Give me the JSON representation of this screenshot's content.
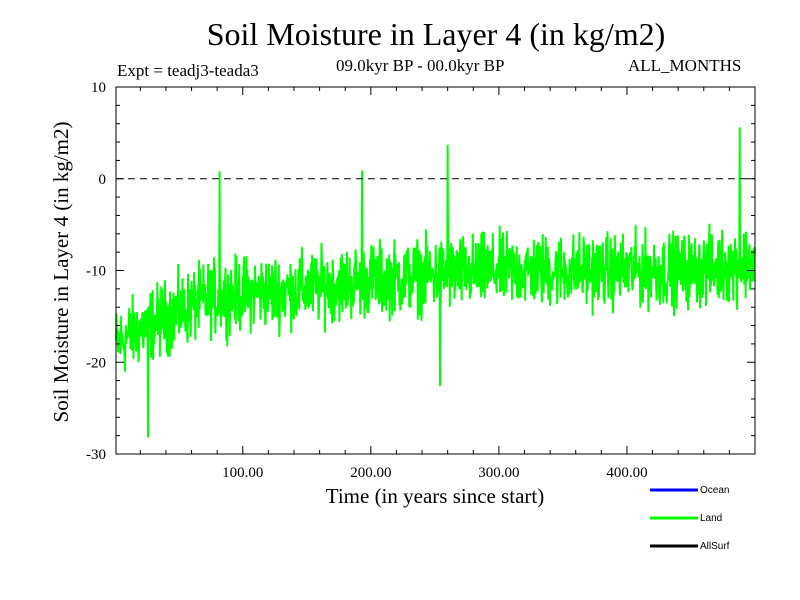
{
  "header": {
    "title": "Soil Moisture in Layer 4 (in kg/m2)",
    "experiment": "Expt = teadj3-teada3",
    "period": "09.0kyr BP - 00.0kyr BP",
    "months": "ALL_MONTHS"
  },
  "chart_data": {
    "type": "line",
    "title": "Soil Moisture in Layer 4 (in kg/m2)",
    "xlabel": "Time (in years since start)",
    "ylabel": "Soil Moisture in Layer 4 (in kg/m2)",
    "xlim": [
      1,
      500
    ],
    "ylim": [
      -30,
      10
    ],
    "x_ticks": [
      100,
      200,
      300,
      400
    ],
    "x_tick_labels": [
      "100.00",
      "200.00",
      "300.00",
      "400.00"
    ],
    "y_ticks": [
      -30,
      -20,
      -10,
      0,
      10
    ],
    "y_tick_labels": [
      "-30",
      "-20",
      "-10",
      "0",
      "10"
    ],
    "reference_line": {
      "y": 0,
      "style": "dashed"
    },
    "grid": false,
    "legend_position": "bottom-right",
    "series": [
      {
        "name": "Ocean",
        "color": "#0000ff",
        "values": []
      },
      {
        "name": "Land",
        "color": "#00ff00",
        "trend": [
          [
            1,
            -18
          ],
          [
            25,
            -16
          ],
          [
            50,
            -14.5
          ],
          [
            75,
            -13
          ],
          [
            100,
            -12.5
          ],
          [
            150,
            -12
          ],
          [
            200,
            -11
          ],
          [
            250,
            -10.5
          ],
          [
            300,
            -10
          ],
          [
            350,
            -10
          ],
          [
            400,
            -10
          ],
          [
            450,
            -10
          ],
          [
            480,
            -9.5
          ],
          [
            500,
            -9
          ]
        ],
        "amplitude": 4.5,
        "extremes": [
          [
            26,
            -28.2
          ],
          [
            82,
            0.8
          ],
          [
            193,
            0.9
          ],
          [
            254,
            -22.6
          ],
          [
            260,
            3.7
          ],
          [
            488,
            5.6
          ]
        ]
      },
      {
        "name": "AllSurf",
        "color": "#000000",
        "values": []
      }
    ]
  }
}
